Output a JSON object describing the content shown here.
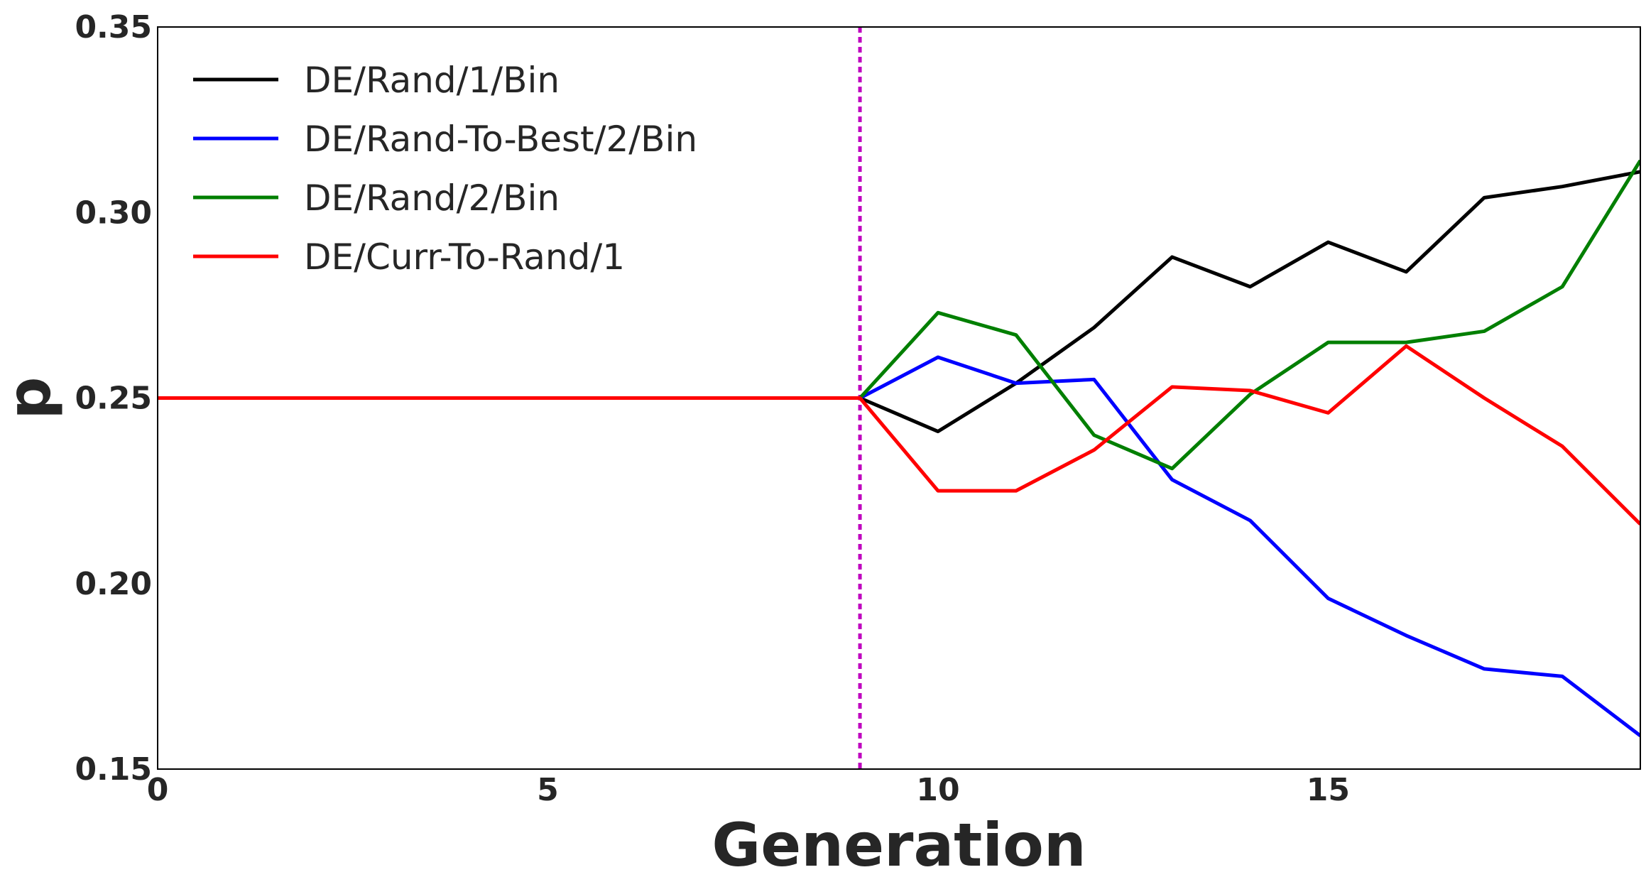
{
  "chart_data": {
    "type": "line",
    "title": "",
    "xlabel": "Generation",
    "ylabel": "p",
    "xlim": [
      0,
      19
    ],
    "ylim": [
      0.15,
      0.35
    ],
    "xticks": [
      0,
      5,
      10,
      15
    ],
    "xtick_labels": [
      "0",
      "5",
      "10",
      "15"
    ],
    "yticks": [
      0.15,
      0.2,
      0.25,
      0.3,
      0.35
    ],
    "ytick_labels": [
      "0.15",
      "0.20",
      "0.25",
      "0.30",
      "0.35"
    ],
    "grid": false,
    "legend_location": "top-left",
    "vline": {
      "x": 9,
      "color": "#bf00bf",
      "style": "dotted"
    },
    "x": [
      0,
      1,
      2,
      3,
      4,
      5,
      6,
      7,
      8,
      9,
      10,
      11,
      12,
      13,
      14,
      15,
      16,
      17,
      18,
      19
    ],
    "series": [
      {
        "name": "DE/Rand/1/Bin",
        "color": "#000000",
        "values": [
          0.25,
          0.25,
          0.25,
          0.25,
          0.25,
          0.25,
          0.25,
          0.25,
          0.25,
          0.25,
          0.241,
          0.254,
          0.269,
          0.288,
          0.28,
          0.292,
          0.284,
          0.304,
          0.307,
          0.311
        ]
      },
      {
        "name": "DE/Rand-To-Best/2/Bin",
        "color": "#0000ff",
        "values": [
          0.25,
          0.25,
          0.25,
          0.25,
          0.25,
          0.25,
          0.25,
          0.25,
          0.25,
          0.25,
          0.261,
          0.254,
          0.255,
          0.228,
          0.217,
          0.196,
          0.186,
          0.177,
          0.175,
          0.159
        ]
      },
      {
        "name": "DE/Rand/2/Bin",
        "color": "#007f00",
        "values": [
          0.25,
          0.25,
          0.25,
          0.25,
          0.25,
          0.25,
          0.25,
          0.25,
          0.25,
          0.25,
          0.273,
          0.267,
          0.24,
          0.231,
          0.251,
          0.265,
          0.265,
          0.268,
          0.28,
          0.314
        ]
      },
      {
        "name": "DE/Curr-To-Rand/1",
        "color": "#ff0000",
        "values": [
          0.25,
          0.25,
          0.25,
          0.25,
          0.25,
          0.25,
          0.25,
          0.25,
          0.25,
          0.25,
          0.225,
          0.225,
          0.236,
          0.253,
          0.252,
          0.246,
          0.264,
          0.25,
          0.237,
          0.216
        ]
      }
    ]
  }
}
